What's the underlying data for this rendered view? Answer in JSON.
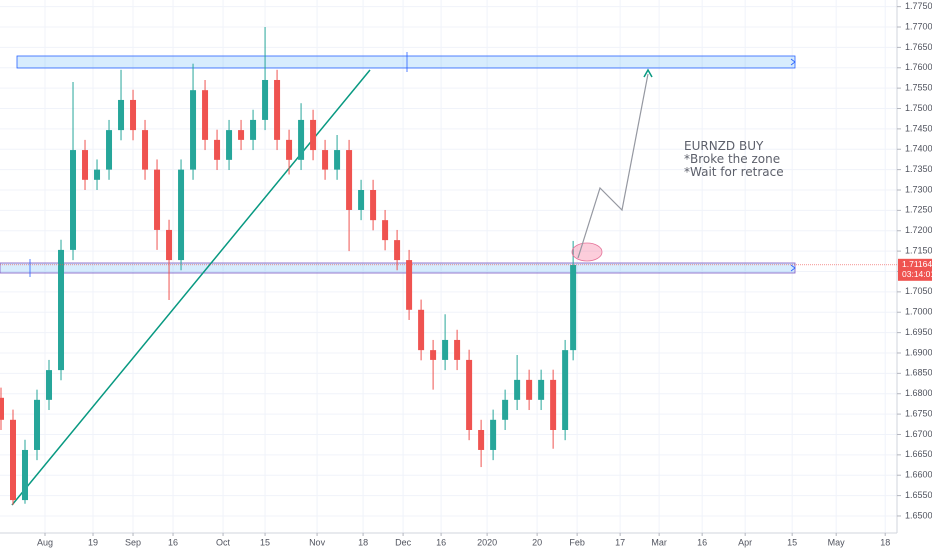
{
  "chart_data": {
    "type": "candlestick",
    "x": [
      -11,
      -8,
      -5,
      -2,
      1,
      4,
      7,
      10,
      13,
      16,
      19,
      22,
      25,
      28,
      31,
      34,
      37,
      40,
      43,
      46,
      49,
      52,
      55,
      58,
      61,
      64,
      67,
      70,
      73,
      76,
      79,
      82,
      85,
      88,
      91,
      94,
      97,
      100,
      103,
      106,
      109,
      112,
      115,
      118,
      121,
      124,
      127,
      130,
      132
    ],
    "open": [
      1.679,
      1.6736,
      1.6539,
      1.6662,
      1.6785,
      1.6858,
      1.7153,
      1.7398,
      1.7325,
      1.735,
      1.7447,
      1.7521,
      1.7447,
      1.735,
      1.7202,
      1.7128,
      1.735,
      1.7545,
      1.7423,
      1.7374,
      1.7447,
      1.7423,
      1.7472,
      1.757,
      1.7423,
      1.7374,
      1.7472,
      1.7398,
      1.735,
      1.7398,
      1.7251,
      1.73,
      1.7226,
      1.7177,
      1.7128,
      1.7006,
      1.6907,
      1.6883,
      1.6932,
      1.6883,
      1.6711,
      1.6662,
      1.6736,
      1.6785,
      1.6834,
      1.6785,
      1.6834,
      1.6711,
      1.6907
    ],
    "high": [
      1.6815,
      1.6761,
      1.6687,
      1.681,
      1.6883,
      1.7178,
      1.7565,
      1.7423,
      1.7375,
      1.7472,
      1.7595,
      1.7546,
      1.7472,
      1.7375,
      1.7227,
      1.7375,
      1.761,
      1.757,
      1.7448,
      1.7472,
      1.7472,
      1.7497,
      1.77,
      1.7595,
      1.7448,
      1.7513,
      1.7497,
      1.7423,
      1.7435,
      1.7423,
      1.7325,
      1.7325,
      1.7251,
      1.7202,
      1.7153,
      1.7031,
      1.6932,
      1.6995,
      1.6957,
      1.6908,
      1.6736,
      1.6761,
      1.681,
      1.6895,
      1.6859,
      1.6859,
      1.6859,
      1.6932,
      1.7175
    ],
    "low": [
      1.6711,
      1.6527,
      1.653,
      1.6637,
      1.676,
      1.6833,
      1.7128,
      1.73,
      1.73,
      1.7325,
      1.7422,
      1.7422,
      1.7325,
      1.7153,
      1.703,
      1.7103,
      1.7325,
      1.7398,
      1.7349,
      1.7349,
      1.7398,
      1.7398,
      1.7447,
      1.7398,
      1.7338,
      1.7349,
      1.7373,
      1.7325,
      1.7325,
      1.715,
      1.7226,
      1.7201,
      1.7152,
      1.7103,
      1.6981,
      1.6882,
      1.681,
      1.6858,
      1.6858,
      1.6686,
      1.662,
      1.6637,
      1.6711,
      1.676,
      1.676,
      1.676,
      1.6665,
      1.6686,
      1.6882
    ],
    "close": [
      1.6736,
      1.6539,
      1.6662,
      1.6785,
      1.6858,
      1.7153,
      1.7398,
      1.7325,
      1.735,
      1.7447,
      1.7521,
      1.7447,
      1.735,
      1.7202,
      1.7128,
      1.735,
      1.7545,
      1.7423,
      1.7374,
      1.7447,
      1.7423,
      1.7472,
      1.757,
      1.7423,
      1.7374,
      1.7472,
      1.7398,
      1.735,
      1.7398,
      1.7251,
      1.73,
      1.7226,
      1.7177,
      1.7128,
      1.7006,
      1.6907,
      1.6883,
      1.6932,
      1.6883,
      1.6711,
      1.6662,
      1.6736,
      1.6785,
      1.6834,
      1.6785,
      1.6834,
      1.6711,
      1.6907,
      1.7116
    ],
    "up_color": "#26a69a",
    "down_color": "#ef5350",
    "xlim": [
      -11.25,
      212.95
    ],
    "xticks": [
      {
        "value": 0,
        "label": "Aug"
      },
      {
        "value": 12,
        "label": "19"
      },
      {
        "value": 22,
        "label": "Sep"
      },
      {
        "value": 32,
        "label": "16"
      },
      {
        "value": 44.5,
        "label": "Oct"
      },
      {
        "value": 55,
        "label": "15"
      },
      {
        "value": 68,
        "label": "Nov"
      },
      {
        "value": 79.5,
        "label": "18"
      },
      {
        "value": 89.5,
        "label": "Dec"
      },
      {
        "value": 99,
        "label": "16"
      },
      {
        "value": 110.5,
        "label": "2020"
      },
      {
        "value": 123,
        "label": "20"
      },
      {
        "value": 133,
        "label": "Feb"
      },
      {
        "value": 143.75,
        "label": "17"
      },
      {
        "value": 153.5,
        "label": "Mar"
      },
      {
        "value": 164.25,
        "label": "16"
      },
      {
        "value": 175,
        "label": "Apr"
      },
      {
        "value": 186.75,
        "label": "15"
      },
      {
        "value": 197.75,
        "label": "May"
      },
      {
        "value": 210,
        "label": "18"
      }
    ],
    "ylim": [
      1.64582,
      1.77663
    ],
    "yticks": [
      {
        "value": 1.65,
        "label": "1.65000"
      },
      {
        "value": 1.655,
        "label": "1.65500"
      },
      {
        "value": 1.66,
        "label": "1.66000"
      },
      {
        "value": 1.665,
        "label": "1.66500"
      },
      {
        "value": 1.67,
        "label": "1.67000"
      },
      {
        "value": 1.675,
        "label": "1.67500"
      },
      {
        "value": 1.68,
        "label": "1.68000"
      },
      {
        "value": 1.685,
        "label": "1.68500"
      },
      {
        "value": 1.69,
        "label": "1.69000"
      },
      {
        "value": 1.695,
        "label": "1.69500"
      },
      {
        "value": 1.7,
        "label": "1.70000"
      },
      {
        "value": 1.705,
        "label": "1.70500"
      },
      {
        "value": 1.71,
        "label": "1.71000"
      },
      {
        "value": 1.715,
        "label": "1.71500"
      },
      {
        "value": 1.72,
        "label": "1.72000"
      },
      {
        "value": 1.725,
        "label": "1.72500"
      },
      {
        "value": 1.73,
        "label": "1.73000"
      },
      {
        "value": 1.735,
        "label": "1.73500"
      },
      {
        "value": 1.74,
        "label": "1.74000"
      },
      {
        "value": 1.745,
        "label": "1.74500"
      },
      {
        "value": 1.75,
        "label": "1.75000"
      },
      {
        "value": 1.755,
        "label": "1.75500"
      },
      {
        "value": 1.76,
        "label": "1.76000"
      },
      {
        "value": 1.765,
        "label": "1.76500"
      },
      {
        "value": 1.77,
        "label": "1.77000"
      },
      {
        "value": 1.775,
        "label": "1.77500"
      }
    ],
    "grid": true,
    "last_price": 1.71164,
    "last_price_color": "#ef5350",
    "countdown": "03:14:01",
    "annotations": [
      "EURNZD BUY",
      "*Broke the zone",
      "*Wait for retrace"
    ]
  }
}
